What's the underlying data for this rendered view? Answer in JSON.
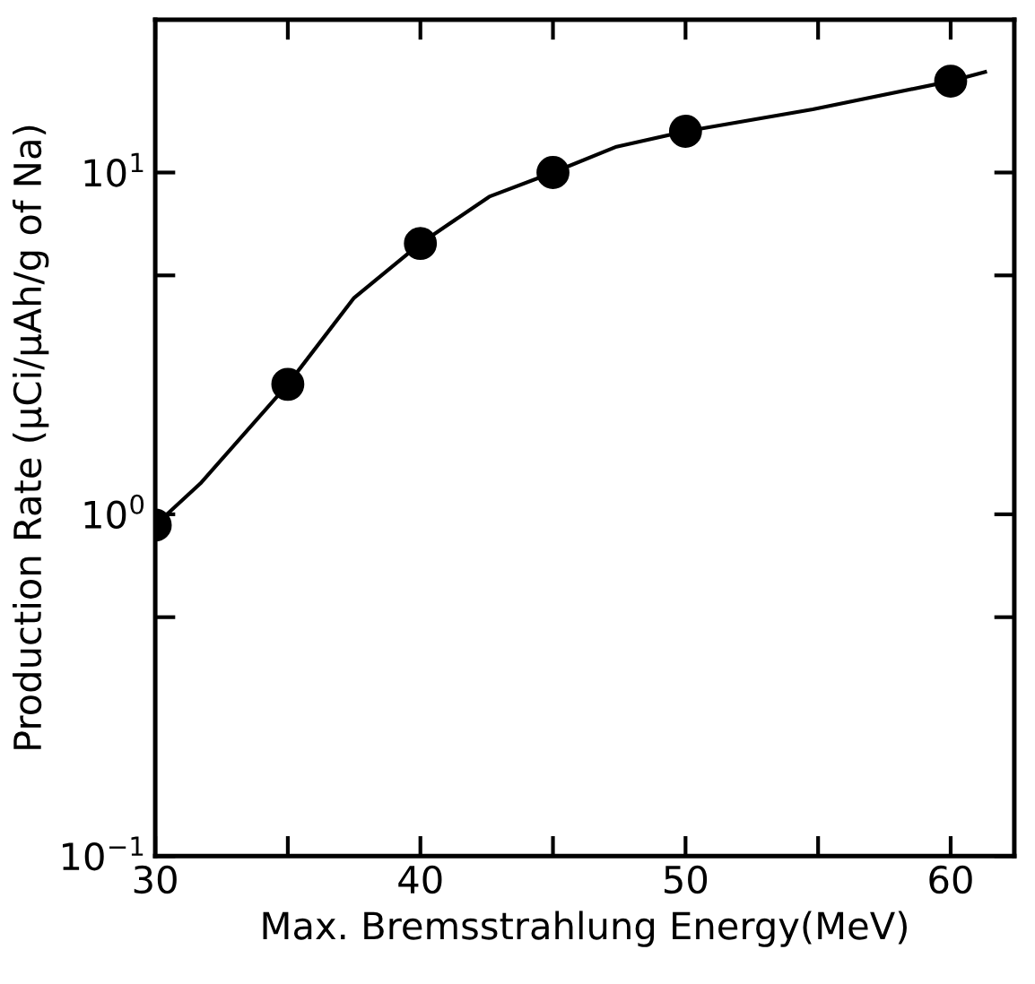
{
  "chart_data": {
    "type": "scatter",
    "xlabel": "Max. Bremsstrahlung Energy(MeV)",
    "ylabel": "Production Rate (μCi/μAh/g of Na)",
    "log": "y",
    "grid": false,
    "xlim": [
      30,
      62.4
    ],
    "ylim": [
      0.1,
      28
    ],
    "xticks": [
      30,
      {
        "value": 35,
        "label": null
      },
      40,
      {
        "value": 45,
        "label": null
      },
      50,
      {
        "value": 55,
        "label": null
      },
      60
    ],
    "yticks": [
      {
        "value": 0.1,
        "label": "10$^{−1}$"
      },
      {
        "value": 0.5,
        "label": null
      },
      {
        "value": 1,
        "label": "10$^{0}$"
      },
      {
        "value": 5,
        "label": null
      },
      {
        "value": 10,
        "label": "10$^{1}$"
      }
    ],
    "series": [
      {
        "type": "line",
        "color": "#000000",
        "marker": "none",
        "line_style": "solid",
        "x": [
          30,
          31.7,
          35,
          37.5,
          40,
          42.6,
          45,
          47.4,
          50,
          54.8,
          60,
          61.3
        ],
        "values": [
          0.93,
          1.23,
          2.4,
          4.3,
          6.2,
          8.5,
          10,
          11.9,
          13.2,
          15.3,
          18.5,
          19.7
        ]
      },
      {
        "color": "#000000",
        "marker": "circle",
        "x": [
          30,
          35,
          40,
          45,
          50,
          60
        ],
        "values": [
          0.93,
          2.4,
          6.2,
          10,
          13.2,
          18.5
        ]
      }
    ]
  }
}
